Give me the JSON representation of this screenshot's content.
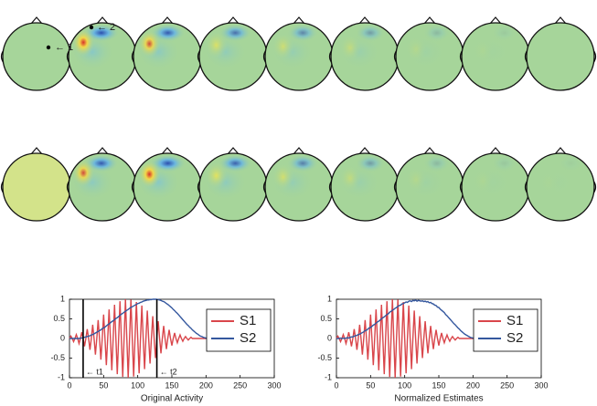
{
  "topomaps": {
    "annotations": [
      "← 1",
      "← 2"
    ]
  },
  "chart_data": [
    {
      "type": "line",
      "xlabel": "Original Activity",
      "xlim": [
        0,
        300
      ],
      "xticks": [
        0,
        50,
        100,
        150,
        200,
        250,
        300
      ],
      "ylim": [
        -1,
        1
      ],
      "yticks": [
        -1,
        -0.5,
        0,
        0.5,
        1
      ],
      "legend": "upper right",
      "markers": [
        {
          "x": 20,
          "label": "← t1"
        },
        {
          "x": 128,
          "label": "← t2"
        }
      ],
      "x": [
        0,
        2,
        4,
        6,
        8,
        10,
        12,
        14,
        16,
        18,
        20,
        22,
        24,
        26,
        28,
        30,
        32,
        34,
        36,
        38,
        40,
        42,
        44,
        46,
        48,
        50,
        52,
        54,
        56,
        58,
        60,
        62,
        64,
        66,
        68,
        70,
        72,
        74,
        76,
        78,
        80,
        82,
        84,
        86,
        88,
        90,
        92,
        94,
        96,
        98,
        100,
        102,
        104,
        106,
        108,
        110,
        112,
        114,
        116,
        118,
        120,
        122,
        124,
        126,
        128,
        130,
        132,
        134,
        136,
        138,
        140,
        142,
        144,
        146,
        148,
        150,
        152,
        154,
        156,
        158,
        160,
        162,
        164,
        166,
        168,
        170,
        172,
        174,
        176,
        178,
        180,
        182,
        184,
        186,
        188,
        190,
        192,
        194,
        196,
        198,
        200,
        202,
        204,
        206,
        208,
        210
      ],
      "series": [
        {
          "name": "S1",
          "color": "#d9464b",
          "values": [
            0,
            0.06,
            0,
            -0.08,
            0,
            0.1,
            0,
            -0.13,
            0,
            0.16,
            0,
            -0.2,
            0,
            0.24,
            0,
            -0.29,
            0,
            0.35,
            0,
            -0.41,
            0,
            0.47,
            0,
            -0.54,
            0,
            0.61,
            0,
            -0.68,
            0,
            0.74,
            0,
            -0.81,
            0,
            0.86,
            0,
            -0.91,
            0,
            0.95,
            0,
            -0.98,
            0,
            1,
            0,
            -1,
            0,
            0.99,
            0,
            -0.97,
            0,
            0.93,
            0,
            -0.89,
            0,
            0.84,
            0,
            -0.78,
            0,
            0.71,
            0,
            -0.64,
            0,
            0.57,
            0,
            -0.5,
            0,
            0.44,
            0,
            -0.38,
            0,
            0.32,
            0,
            -0.27,
            0,
            0.22,
            0,
            -0.18,
            0,
            0.14,
            0,
            -0.11,
            0,
            0.09,
            0,
            -0.07,
            0,
            0.05,
            0,
            -0.04,
            0,
            0.03,
            0,
            0,
            0,
            0,
            0,
            0,
            0,
            0,
            0,
            0,
            0,
            0,
            0,
            0,
            0,
            0
          ]
        },
        {
          "name": "S2",
          "color": "#34579e",
          "values": [
            0,
            0,
            0,
            0,
            0,
            0,
            0,
            0,
            0.01,
            0.01,
            0.02,
            0.03,
            0.04,
            0.05,
            0.06,
            0.07,
            0.09,
            0.1,
            0.12,
            0.14,
            0.16,
            0.18,
            0.2,
            0.22,
            0.25,
            0.27,
            0.29,
            0.32,
            0.35,
            0.37,
            0.4,
            0.43,
            0.45,
            0.48,
            0.51,
            0.53,
            0.56,
            0.59,
            0.62,
            0.64,
            0.67,
            0.69,
            0.72,
            0.74,
            0.77,
            0.79,
            0.81,
            0.83,
            0.85,
            0.87,
            0.89,
            0.9,
            0.92,
            0.93,
            0.95,
            0.96,
            0.97,
            0.98,
            0.98,
            0.99,
            0.99,
            1,
            1,
            1,
            1,
            0.99,
            0.98,
            0.97,
            0.95,
            0.94,
            0.92,
            0.89,
            0.87,
            0.84,
            0.81,
            0.78,
            0.74,
            0.71,
            0.67,
            0.64,
            0.6,
            0.56,
            0.52,
            0.48,
            0.44,
            0.4,
            0.36,
            0.33,
            0.29,
            0.26,
            0.22,
            0.19,
            0.16,
            0.13,
            0.11,
            0.08,
            0.06,
            0.05,
            0.03,
            0.02,
            0.01,
            0,
            0,
            0,
            0,
            0
          ]
        }
      ]
    },
    {
      "type": "line",
      "xlabel": "Normalized Estimates",
      "xlim": [
        0,
        300
      ],
      "xticks": [
        0,
        50,
        100,
        150,
        200,
        250,
        300
      ],
      "ylim": [
        -1,
        1
      ],
      "yticks": [
        -1,
        -0.5,
        0,
        0.5,
        1
      ],
      "legend": "upper right",
      "x": [
        0,
        2,
        4,
        6,
        8,
        10,
        12,
        14,
        16,
        18,
        20,
        22,
        24,
        26,
        28,
        30,
        32,
        34,
        36,
        38,
        40,
        42,
        44,
        46,
        48,
        50,
        52,
        54,
        56,
        58,
        60,
        62,
        64,
        66,
        68,
        70,
        72,
        74,
        76,
        78,
        80,
        82,
        84,
        86,
        88,
        90,
        92,
        94,
        96,
        98,
        100,
        102,
        104,
        106,
        108,
        110,
        112,
        114,
        116,
        118,
        120,
        122,
        124,
        126,
        128,
        130,
        132,
        134,
        136,
        138,
        140,
        142,
        144,
        146,
        148,
        150,
        152,
        154,
        156,
        158,
        160,
        162,
        164,
        166,
        168,
        170,
        172,
        174,
        176,
        178,
        180,
        182,
        184,
        186,
        188,
        190,
        192,
        194,
        196,
        198,
        200,
        202,
        204,
        206,
        208,
        210
      ],
      "series": [
        {
          "name": "S1",
          "color": "#d9464b",
          "values": [
            0,
            0.06,
            0,
            -0.08,
            0,
            0.1,
            0,
            -0.13,
            0,
            0.16,
            0,
            -0.2,
            0,
            0.24,
            0,
            -0.29,
            0,
            0.35,
            0,
            -0.41,
            0,
            0.47,
            0,
            -0.54,
            0,
            0.61,
            0,
            -0.68,
            0,
            0.74,
            0,
            -0.81,
            0,
            0.86,
            0,
            -0.91,
            0,
            0.95,
            0,
            -0.98,
            0,
            1,
            0,
            -1,
            0,
            0.99,
            0,
            -0.97,
            0,
            0.93,
            0,
            -0.89,
            0,
            0.84,
            0,
            -0.78,
            0,
            0.71,
            0,
            -0.64,
            0,
            0.57,
            0,
            -0.5,
            0,
            0.44,
            0,
            -0.38,
            0,
            0.32,
            0,
            -0.27,
            0,
            0.22,
            0,
            -0.18,
            0,
            0.14,
            0,
            -0.11,
            0,
            0.09,
            0,
            -0.07,
            0,
            0.05,
            0,
            -0.04,
            0,
            0.03,
            0,
            0,
            0,
            0,
            0,
            0,
            0,
            0,
            0,
            0,
            0,
            0,
            0,
            0,
            0,
            0
          ]
        },
        {
          "name": "S2",
          "color": "#34579e",
          "values": [
            0,
            0,
            0,
            0.01,
            0,
            0.01,
            0,
            0.01,
            0.02,
            0.01,
            0.03,
            0.04,
            0.04,
            0.06,
            0.07,
            0.08,
            0.1,
            0.11,
            0.13,
            0.15,
            0.17,
            0.2,
            0.21,
            0.24,
            0.27,
            0.28,
            0.31,
            0.34,
            0.36,
            0.39,
            0.42,
            0.44,
            0.47,
            0.5,
            0.53,
            0.55,
            0.58,
            0.61,
            0.63,
            0.67,
            0.69,
            0.72,
            0.74,
            0.77,
            0.79,
            0.82,
            0.84,
            0.85,
            0.88,
            0.89,
            0.91,
            0.93,
            0.92,
            0.95,
            0.96,
            0.94,
            0.97,
            0.96,
            0.98,
            0.95,
            0.97,
            0.96,
            0.95,
            0.96,
            0.94,
            0.95,
            0.93,
            0.94,
            0.91,
            0.92,
            0.89,
            0.88,
            0.85,
            0.84,
            0.8,
            0.79,
            0.75,
            0.72,
            0.69,
            0.66,
            0.61,
            0.58,
            0.54,
            0.5,
            0.46,
            0.42,
            0.38,
            0.35,
            0.31,
            0.27,
            0.24,
            0.2,
            0.17,
            0.14,
            0.11,
            0.09,
            0.07,
            0.05,
            0.03,
            0.02,
            0.01,
            0.01,
            0,
            0,
            0,
            0
          ]
        }
      ]
    }
  ]
}
